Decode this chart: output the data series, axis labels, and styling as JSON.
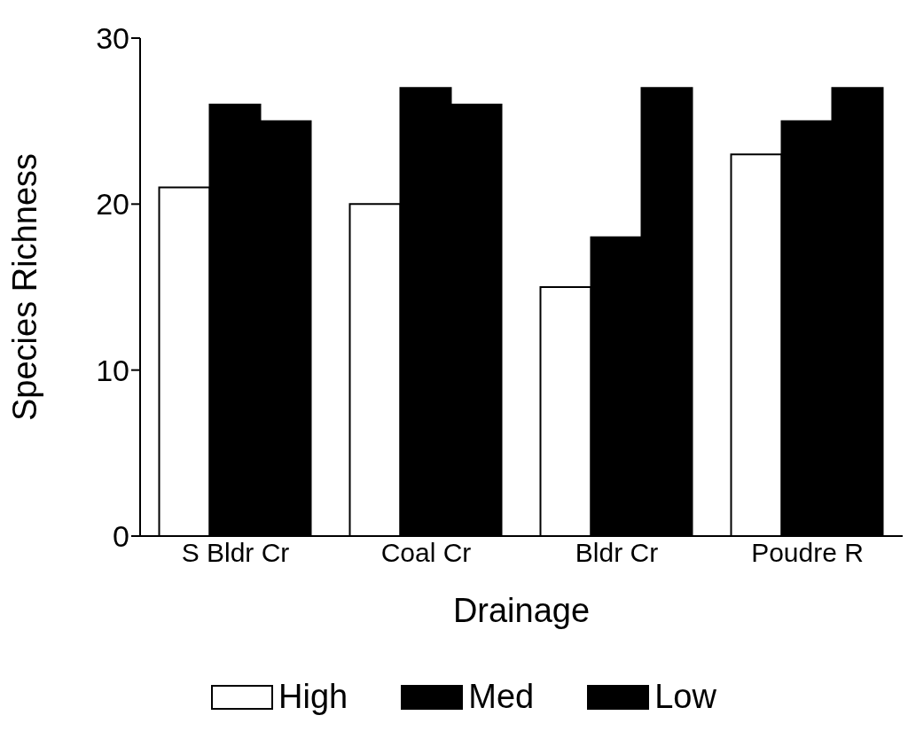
{
  "chart_data": {
    "type": "bar",
    "xlabel": "Drainage",
    "ylabel": "Species Richness",
    "categories": [
      "S Bldr Cr",
      "Coal Cr",
      "Bldr Cr",
      "Poudre R"
    ],
    "series": [
      {
        "name": "High",
        "color": "#ffffff",
        "values": [
          21,
          20,
          15,
          23
        ]
      },
      {
        "name": "Med",
        "color": "#000000",
        "values": [
          26,
          27,
          18,
          25
        ]
      },
      {
        "name": "Low",
        "color": "#000000",
        "values": [
          25,
          26,
          27,
          27
        ]
      }
    ],
    "ylim": [
      0,
      30
    ],
    "yticks": [
      0,
      10,
      20,
      30
    ],
    "grid": false,
    "legend": "bottom"
  }
}
